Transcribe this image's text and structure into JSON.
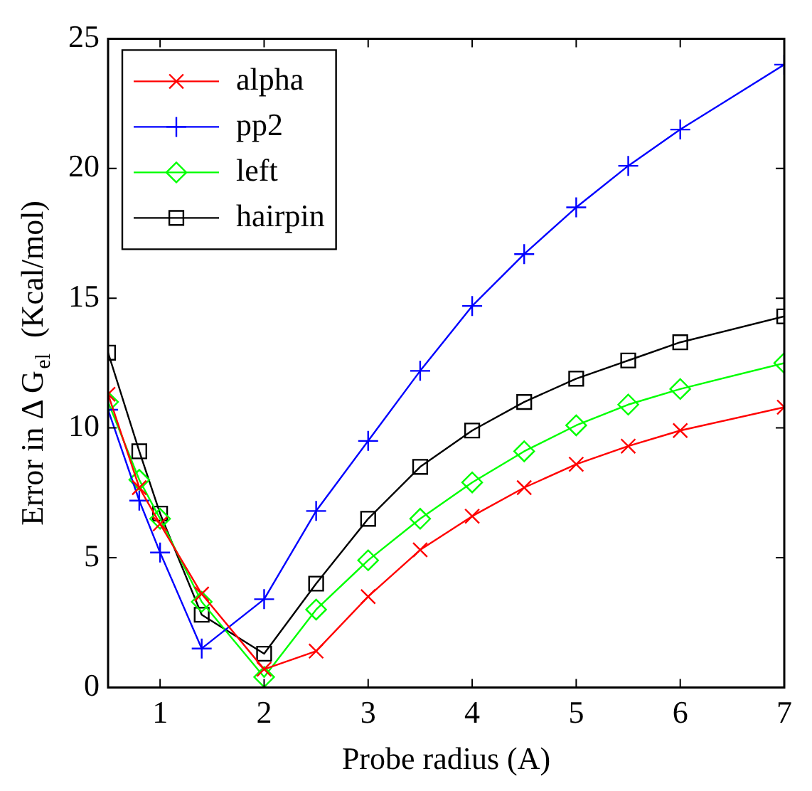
{
  "chart_data": {
    "type": "line",
    "xlabel": "Probe radius (A)",
    "ylabel": "Error in Δ G$_{el}$  (Kcal/mol)",
    "x": [
      0.5,
      0.8,
      1.0,
      1.4,
      2.0,
      2.5,
      3.0,
      3.5,
      4.0,
      4.5,
      5.0,
      5.5,
      6.0,
      7.0
    ],
    "series": [
      {
        "name": "alpha",
        "color": "#ff0000",
        "marker": "cross",
        "values": [
          11.3,
          7.7,
          6.3,
          3.6,
          0.7,
          1.4,
          3.5,
          5.3,
          6.6,
          7.7,
          8.6,
          9.3,
          9.9,
          10.8
        ]
      },
      {
        "name": "pp2",
        "color": "#0000ff",
        "marker": "plus",
        "values": [
          10.7,
          7.2,
          5.2,
          1.5,
          3.4,
          6.8,
          9.5,
          12.2,
          14.7,
          16.7,
          18.5,
          20.1,
          21.5,
          24.0
        ]
      },
      {
        "name": "left",
        "color": "#00ff00",
        "marker": "diamond",
        "values": [
          11.0,
          8.0,
          6.5,
          3.3,
          0.4,
          3.0,
          4.9,
          6.5,
          7.9,
          9.1,
          10.1,
          10.9,
          11.5,
          12.5
        ]
      },
      {
        "name": "hairpin",
        "color": "#000000",
        "marker": "square",
        "values": [
          12.9,
          9.1,
          6.7,
          2.8,
          1.3,
          4.0,
          6.5,
          8.5,
          9.9,
          11.0,
          11.9,
          12.6,
          13.3,
          14.3
        ]
      }
    ],
    "xlim": [
      0.5,
      7
    ],
    "xticks": [
      1,
      2,
      3,
      4,
      5,
      6,
      7
    ],
    "ylim": [
      0,
      25
    ],
    "yticks": [
      0,
      5,
      10,
      15,
      20,
      25
    ],
    "grid": false,
    "legend": "top left",
    "line_style": "solid"
  }
}
